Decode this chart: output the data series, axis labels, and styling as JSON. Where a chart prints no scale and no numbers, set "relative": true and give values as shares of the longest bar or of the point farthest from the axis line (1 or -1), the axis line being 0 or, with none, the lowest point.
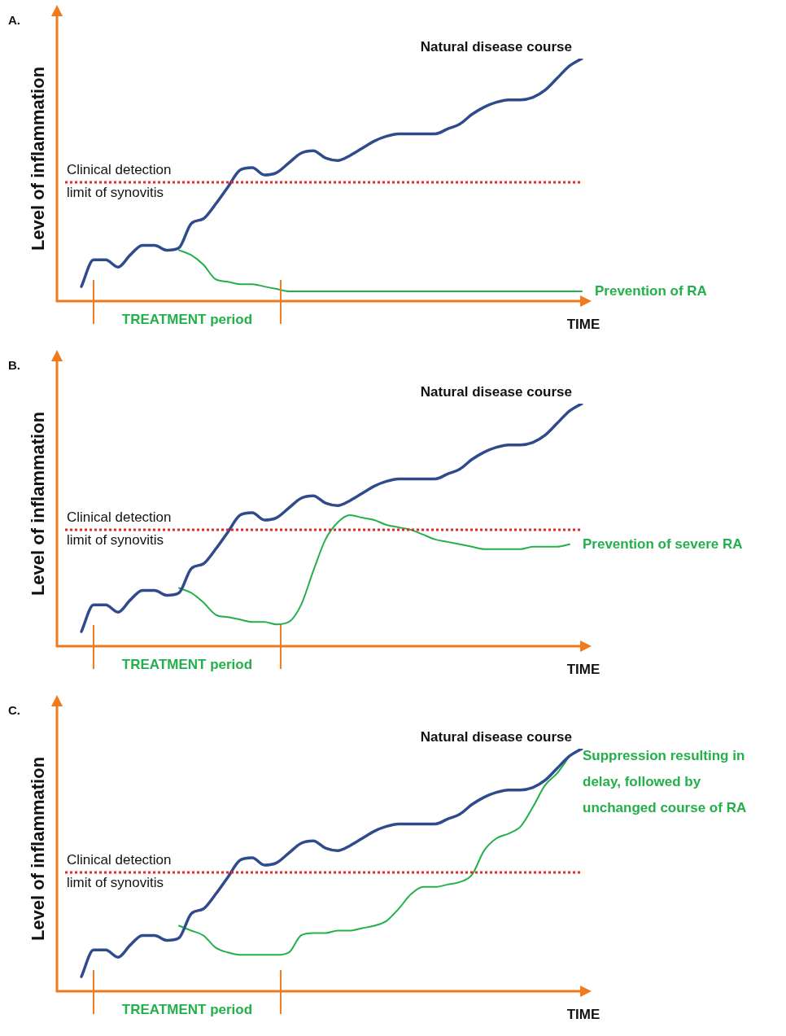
{
  "chart_data": [
    {
      "type": "line",
      "title": "A.",
      "xlabel": "TIME",
      "ylabel": "Level of inflammation",
      "relative": true,
      "legend": false,
      "marker": "none",
      "categories": [
        null,
        null,
        null,
        null,
        null,
        null,
        null,
        null,
        null,
        null,
        null,
        null,
        null,
        null,
        null,
        null,
        null,
        null,
        null,
        null,
        null,
        null,
        null,
        null,
        null,
        null,
        null,
        null,
        null,
        null,
        null,
        null,
        null,
        null,
        null,
        null,
        null,
        null,
        null,
        null,
        null,
        null
      ],
      "series": [
        {
          "name": "Natural disease course",
          "color": "#2f4b8c",
          "values": [
            0.06,
            0.17,
            0.17,
            0.14,
            0.19,
            0.23,
            0.23,
            0.21,
            0.22,
            0.32,
            0.34,
            0.4,
            0.47,
            0.54,
            0.55,
            0.52,
            0.53,
            0.57,
            0.61,
            0.62,
            0.59,
            0.58,
            0.6,
            0.63,
            0.66,
            0.68,
            0.69,
            0.69,
            0.69,
            0.69,
            0.71,
            0.73,
            0.77,
            0.8,
            0.82,
            0.83,
            0.83,
            0.84,
            0.87,
            0.92,
            0.97,
            1.0
          ]
        },
        {
          "name": "Prevention of RA",
          "color": "#22b04a",
          "values": [
            null,
            null,
            null,
            null,
            null,
            null,
            null,
            null,
            0.21,
            0.19,
            0.15,
            0.09,
            0.08,
            0.07,
            0.07,
            0.06,
            0.05,
            0.04,
            0.04,
            0.04,
            0.04,
            0.04,
            0.04,
            0.04,
            0.04,
            0.04,
            0.04,
            0.04,
            0.04,
            0.04,
            0.04,
            0.04,
            0.04,
            0.04,
            0.04,
            0.04,
            0.04,
            0.04,
            0.04,
            0.04,
            0.04,
            0.04
          ]
        }
      ],
      "ref_lines": [
        {
          "axis": "y",
          "value": 0.49,
          "label": "Clinical detection limit of synovitis",
          "color": "#e8262a",
          "line_style": "dotted"
        }
      ],
      "annotations": [
        "TREATMENT period"
      ]
    },
    {
      "type": "line",
      "title": "B.",
      "xlabel": "TIME",
      "ylabel": "Level of inflammation",
      "relative": true,
      "legend": false,
      "marker": "none",
      "categories": [
        null,
        null,
        null,
        null,
        null,
        null,
        null,
        null,
        null,
        null,
        null,
        null,
        null,
        null,
        null,
        null,
        null,
        null,
        null,
        null,
        null,
        null,
        null,
        null,
        null,
        null,
        null,
        null,
        null,
        null,
        null,
        null,
        null,
        null,
        null,
        null,
        null,
        null,
        null,
        null,
        null,
        null
      ],
      "series": [
        {
          "name": "Natural disease course",
          "color": "#2f4b8c",
          "values": [
            0.06,
            0.17,
            0.17,
            0.14,
            0.19,
            0.23,
            0.23,
            0.21,
            0.22,
            0.32,
            0.34,
            0.4,
            0.47,
            0.54,
            0.55,
            0.52,
            0.53,
            0.57,
            0.61,
            0.62,
            0.59,
            0.58,
            0.6,
            0.63,
            0.66,
            0.68,
            0.69,
            0.69,
            0.69,
            0.69,
            0.71,
            0.73,
            0.77,
            0.8,
            0.82,
            0.83,
            0.83,
            0.84,
            0.87,
            0.92,
            0.97,
            1.0
          ]
        },
        {
          "name": "Prevention of severe RA",
          "color": "#22b04a",
          "values": [
            null,
            null,
            null,
            null,
            null,
            null,
            null,
            null,
            0.24,
            0.22,
            0.18,
            0.13,
            0.12,
            0.11,
            0.1,
            0.1,
            0.09,
            0.1,
            0.17,
            0.31,
            0.44,
            0.51,
            0.54,
            0.53,
            0.52,
            0.5,
            0.49,
            0.48,
            0.46,
            0.44,
            0.43,
            0.42,
            0.41,
            0.4,
            0.4,
            0.4,
            0.4,
            0.41,
            0.41,
            0.41,
            0.42,
            null
          ]
        }
      ],
      "ref_lines": [
        {
          "axis": "y",
          "value": 0.48,
          "label": "Clinical detection limit of synovitis",
          "color": "#e8262a",
          "line_style": "dotted"
        }
      ],
      "annotations": [
        "TREATMENT period"
      ]
    },
    {
      "type": "line",
      "title": "C.",
      "xlabel": "TIME",
      "ylabel": "Level of inflammation",
      "relative": true,
      "legend": false,
      "marker": "none",
      "categories": [
        null,
        null,
        null,
        null,
        null,
        null,
        null,
        null,
        null,
        null,
        null,
        null,
        null,
        null,
        null,
        null,
        null,
        null,
        null,
        null,
        null,
        null,
        null,
        null,
        null,
        null,
        null,
        null,
        null,
        null,
        null,
        null,
        null,
        null,
        null,
        null,
        null,
        null,
        null,
        null,
        null,
        null
      ],
      "series": [
        {
          "name": "Natural disease course",
          "color": "#2f4b8c",
          "values": [
            0.06,
            0.17,
            0.17,
            0.14,
            0.19,
            0.23,
            0.23,
            0.21,
            0.22,
            0.32,
            0.34,
            0.4,
            0.47,
            0.54,
            0.55,
            0.52,
            0.53,
            0.57,
            0.61,
            0.62,
            0.59,
            0.58,
            0.6,
            0.63,
            0.66,
            0.68,
            0.69,
            0.69,
            0.69,
            0.69,
            0.71,
            0.73,
            0.77,
            0.8,
            0.82,
            0.83,
            0.83,
            0.84,
            0.87,
            0.92,
            0.97,
            1.0
          ]
        },
        {
          "name": "Suppression resulting in delay, followed by unchanged course of RA",
          "color": "#22b04a",
          "values": [
            null,
            null,
            null,
            null,
            null,
            null,
            null,
            null,
            0.27,
            0.25,
            0.23,
            0.18,
            0.16,
            0.15,
            0.15,
            0.15,
            0.15,
            0.16,
            0.23,
            0.24,
            0.24,
            0.25,
            0.25,
            0.26,
            0.27,
            0.29,
            0.34,
            0.4,
            0.43,
            0.43,
            0.44,
            0.45,
            0.48,
            0.58,
            0.63,
            0.65,
            0.68,
            0.76,
            0.85,
            0.9,
            0.97,
            null
          ]
        }
      ],
      "ref_lines": [
        {
          "axis": "y",
          "value": 0.49,
          "label": "Clinical detection limit of synovitis",
          "color": "#e8262a",
          "line_style": "dotted"
        }
      ],
      "annotations": [
        "TREATMENT period"
      ]
    }
  ]
}
